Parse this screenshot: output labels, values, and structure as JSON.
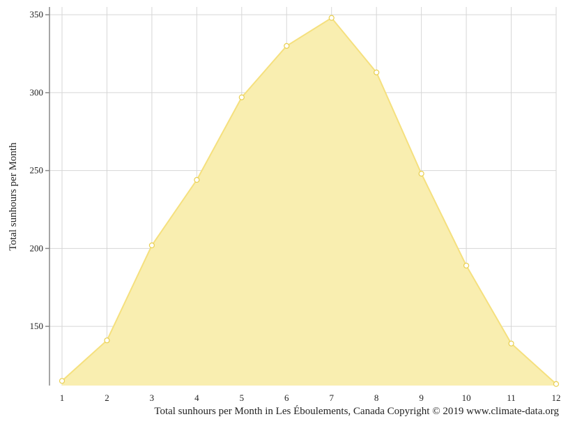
{
  "chart_data": {
    "type": "area",
    "x": [
      1,
      2,
      3,
      4,
      5,
      6,
      7,
      8,
      9,
      10,
      11,
      12
    ],
    "series": [
      {
        "values": [
          115,
          141,
          202,
          244,
          297,
          330,
          348,
          313,
          248,
          189,
          139,
          113
        ]
      }
    ],
    "x_ticks": [
      "1",
      "2",
      "3",
      "4",
      "5",
      "6",
      "7",
      "8",
      "9",
      "10",
      "11",
      "12"
    ],
    "y_ticks": [
      "150",
      "200",
      "250",
      "300",
      "350"
    ],
    "ylabel": "Total sunhours per Month",
    "xlabel": "",
    "ylim": [
      112,
      355
    ],
    "grid": true,
    "colors": {
      "fill": "#f9eeb0",
      "line": "#f5e07e",
      "marker_fill": "#ffffff",
      "marker_stroke": "#e9cf4f"
    }
  },
  "caption": "Total sunhours per Month in Les Éboulements, Canada Copyright © 2019 www.climate-data.org"
}
